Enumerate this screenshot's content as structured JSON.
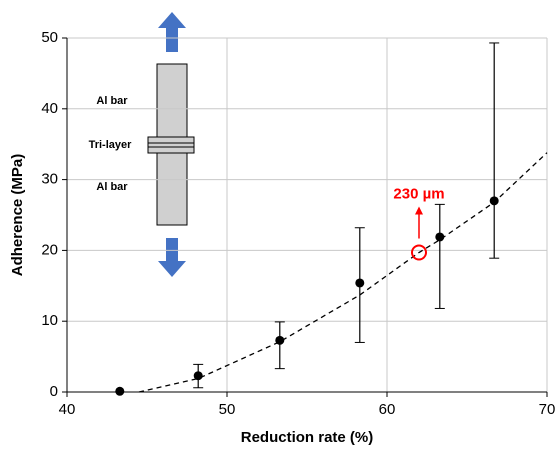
{
  "chart_data": {
    "type": "scatter",
    "x_label": "Reduction rate (%)",
    "y_label": "Adherence (MPa)",
    "x": [
      43.3,
      48.2,
      53.3,
      58.3,
      63.3,
      66.7
    ],
    "values": [
      0.1,
      2.3,
      7.3,
      15.4,
      21.9,
      27.0
    ],
    "error_low": [
      0,
      1.7,
      4.0,
      8.4,
      10.1,
      8.1
    ],
    "error_high": [
      0,
      1.6,
      2.6,
      7.8,
      4.6,
      22.3
    ],
    "color": "#000000",
    "fit": {
      "x": [
        44.5,
        48.2,
        53.3,
        58.3,
        62,
        63.3,
        66.7,
        70
      ],
      "y": [
        0,
        1.9,
        7.1,
        13.7,
        19.7,
        21.5,
        26.8,
        33.8
      ],
      "color": "#000000"
    },
    "annotation": {
      "text": "230 µm",
      "x": 62,
      "y": 19.7,
      "color": "#ff0000"
    },
    "inset": {
      "labels": [
        "Al bar",
        "Tri-layer",
        "Al bar"
      ]
    },
    "xlim": [
      40,
      70
    ],
    "xticks": [
      40,
      50,
      60,
      70
    ],
    "ylim": [
      0,
      50
    ],
    "yticks": [
      0,
      10,
      20,
      30,
      40,
      50
    ],
    "grid": true
  }
}
